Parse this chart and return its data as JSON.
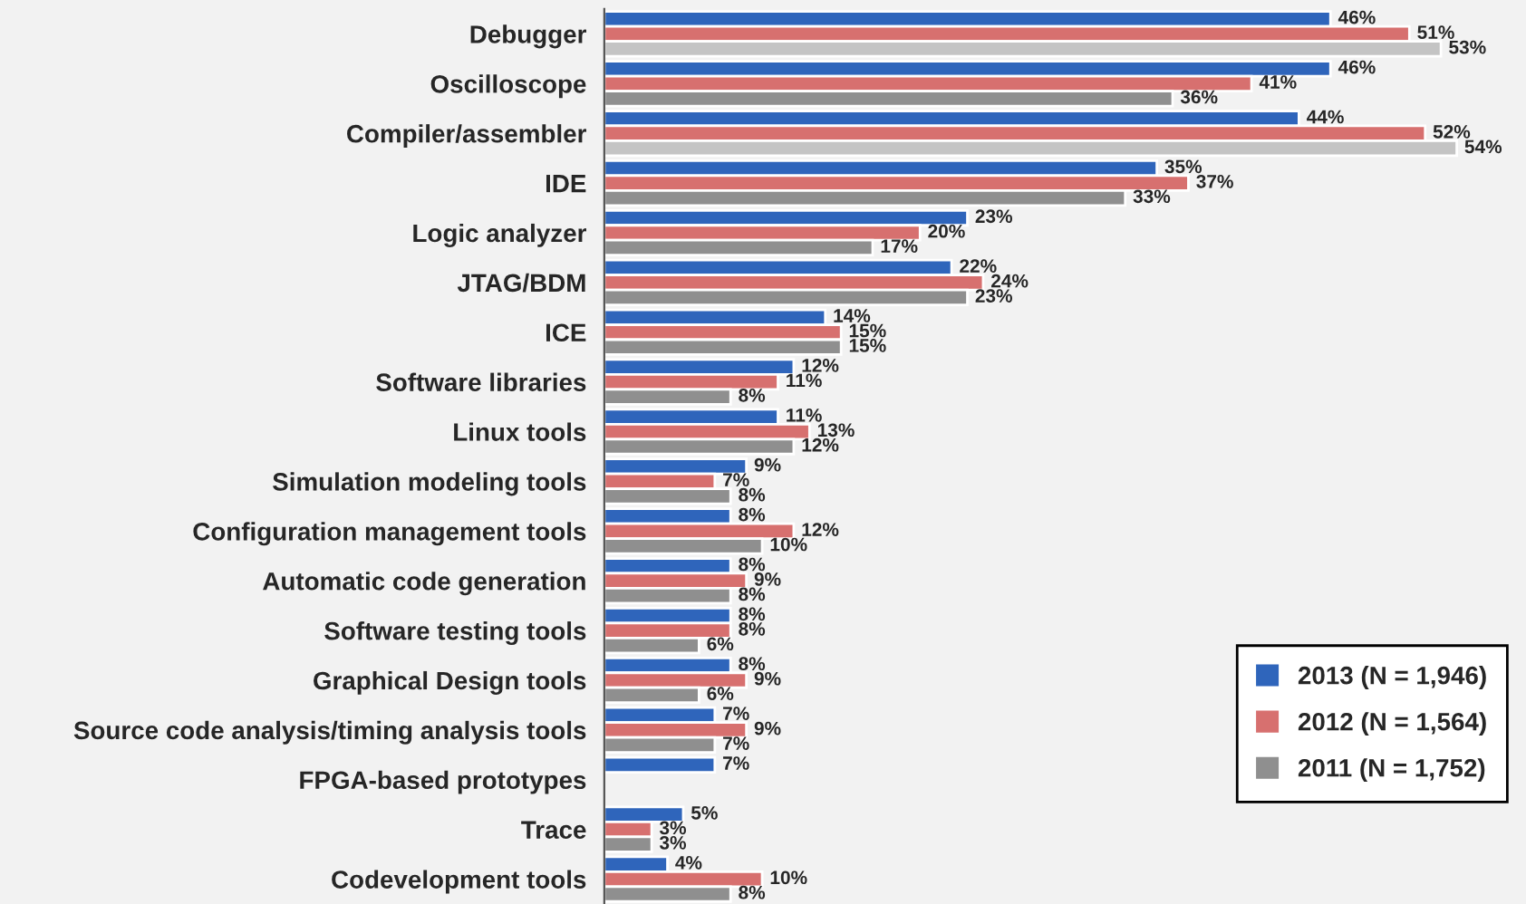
{
  "chart_data": {
    "type": "bar",
    "orientation": "horizontal",
    "categories": [
      "Debugger",
      "Oscilloscope",
      "Compiler/assembler",
      "IDE",
      "Logic analyzer",
      "JTAG/BDM",
      "ICE",
      "Software libraries",
      "Linux tools",
      "Simulation modeling tools",
      "Configuration management tools",
      "Automatic code generation",
      "Software testing tools",
      "Graphical Design tools",
      "Source code analysis/timing analysis tools",
      "FPGA-based prototypes",
      "Trace",
      "Codevelopment tools"
    ],
    "series": [
      {
        "name": "2013 (N = 1,946)",
        "color": "#2f65bb",
        "values": [
          46,
          46,
          44,
          35,
          23,
          22,
          14,
          12,
          11,
          9,
          8,
          8,
          8,
          8,
          7,
          7,
          5,
          4
        ],
        "value_labels": [
          "46%",
          "46%",
          "44%",
          "35%",
          "23%",
          "22%",
          "14%",
          "12%",
          "11%",
          "9%",
          "8%",
          "8%",
          "8%",
          "8%",
          "7%",
          "7%",
          "5%",
          "4%"
        ]
      },
      {
        "name": "2012 (N = 1,564)",
        "color": "#d7706f",
        "values": [
          51,
          41,
          52,
          37,
          20,
          24,
          15,
          11,
          13,
          7,
          12,
          9,
          8,
          9,
          9,
          null,
          3,
          10
        ],
        "value_labels": [
          "51%",
          "41%",
          "52%",
          "37%",
          "20%",
          "24%",
          "15%",
          "11%",
          "13%",
          "7%",
          "12%",
          "9%",
          "8%",
          "9%",
          "9%",
          null,
          "3%",
          "10%"
        ]
      },
      {
        "name": "2011 (N = 1,752)",
        "color": "#8f8f8f",
        "colors": [
          "#c4c4c4",
          "#8f8f8f",
          "#c4c4c4",
          "#8f8f8f",
          "#8f8f8f",
          "#8f8f8f",
          "#8f8f8f",
          "#8f8f8f",
          "#8f8f8f",
          "#8f8f8f",
          "#8f8f8f",
          "#8f8f8f",
          "#8f8f8f",
          "#8f8f8f",
          "#8f8f8f",
          "#8f8f8f",
          "#8f8f8f",
          "#8f8f8f"
        ],
        "values": [
          53,
          36,
          54,
          33,
          17,
          23,
          15,
          8,
          12,
          8,
          10,
          8,
          6,
          6,
          7,
          null,
          3,
          8
        ],
        "value_labels": [
          "53%",
          "36%",
          "54%",
          "33%",
          "17%",
          "23%",
          "15%",
          "8%",
          "12%",
          "8%",
          "10%",
          "8%",
          "6%",
          "6%",
          "7%",
          null,
          "3%",
          "8%"
        ]
      }
    ],
    "xlim": [
      0,
      58
    ],
    "tick_labels": "y",
    "grid": false,
    "legend": "bottom right"
  }
}
